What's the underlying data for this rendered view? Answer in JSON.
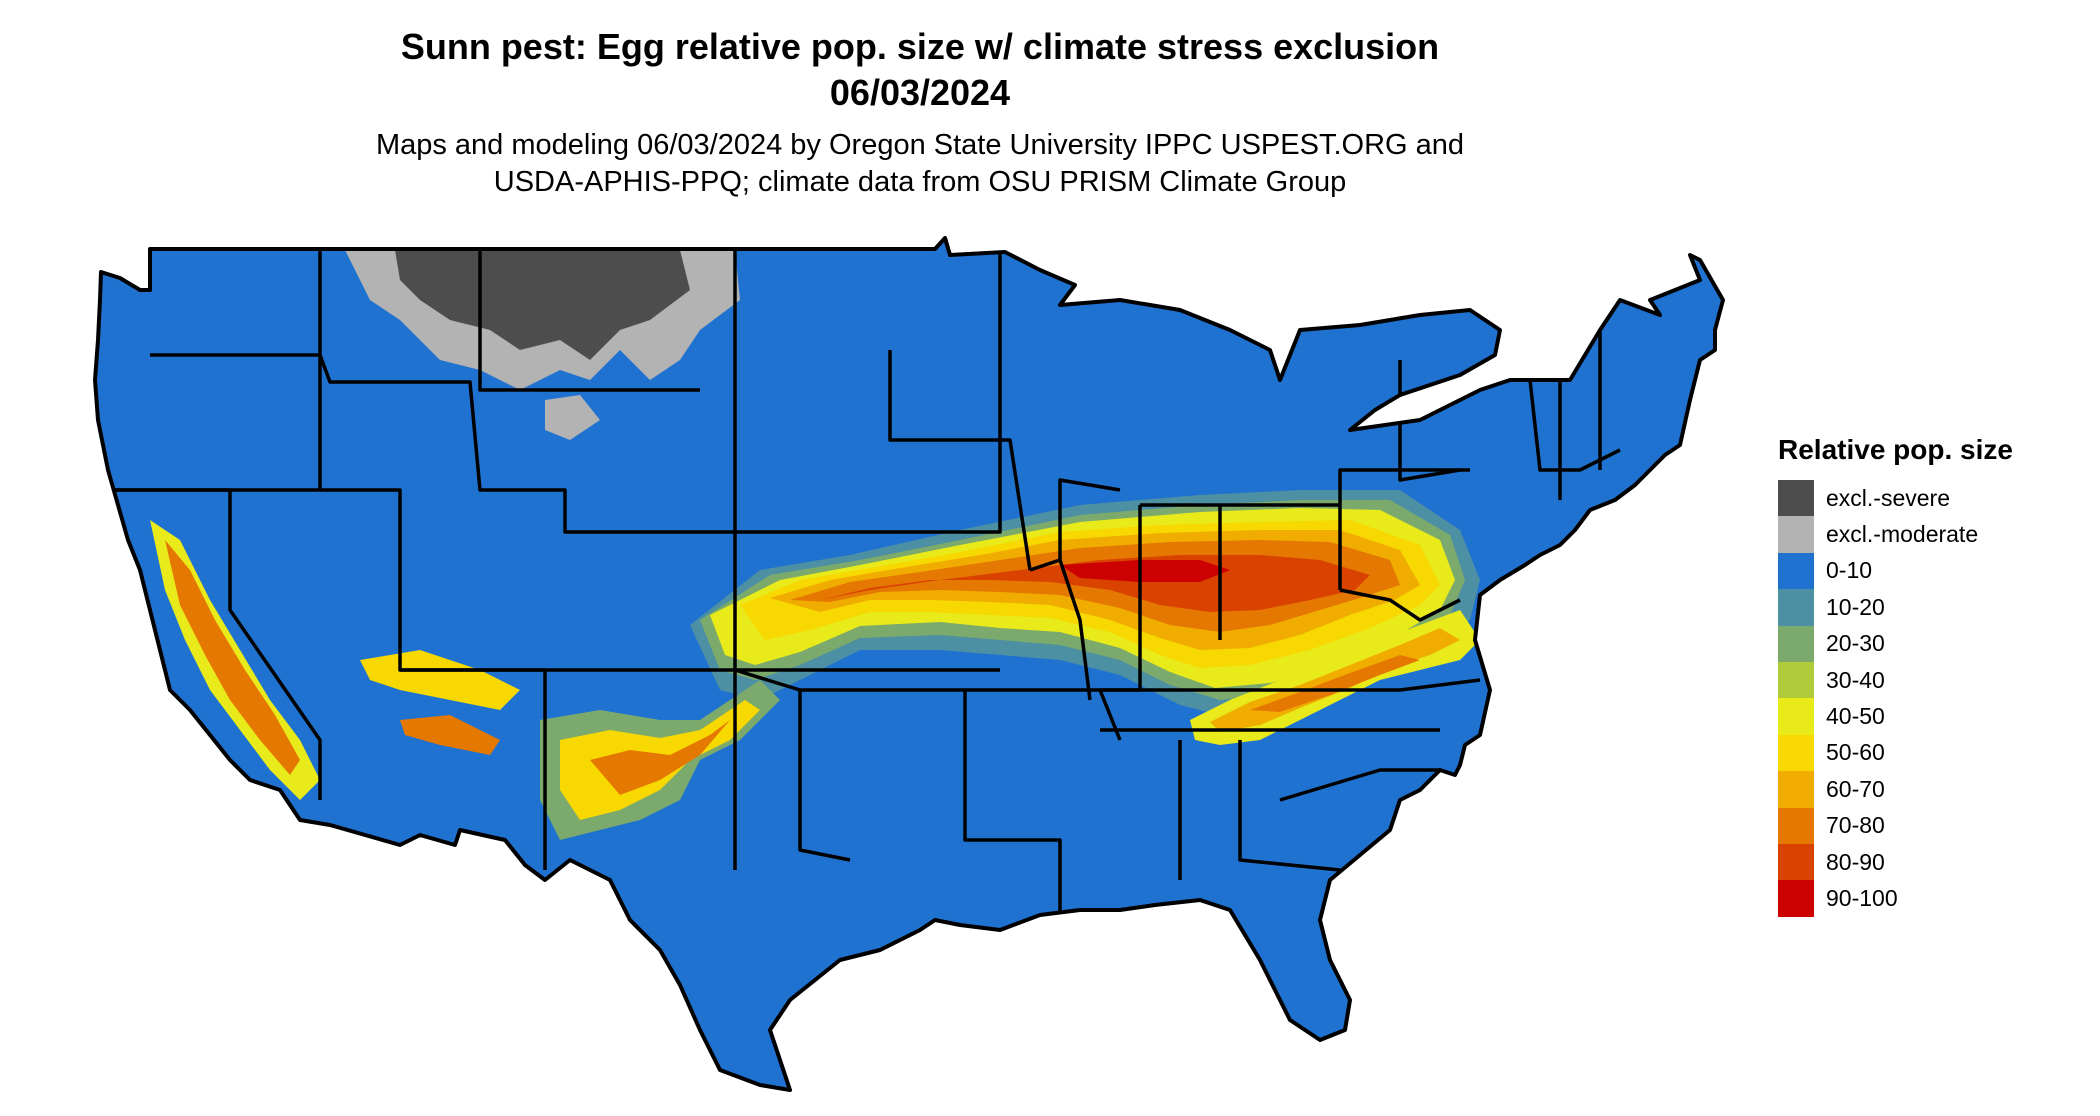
{
  "title_line1": "Sunn pest: Egg relative pop. size w/ climate stress exclusion",
  "title_line2": "06/03/2024",
  "subtitle_line1": "Maps and modeling 06/03/2024 by Oregon State University IPPC USPEST.ORG and",
  "subtitle_line2": "USDA-APHIS-PPQ; climate data from OSU PRISM Climate Group",
  "legend": {
    "title": "Relative pop. size",
    "items": [
      {
        "label": "excl.-severe",
        "color": "#4d4d4d"
      },
      {
        "label": "excl.-moderate",
        "color": "#b3b3b3"
      },
      {
        "label": "0-10",
        "color": "#1f72d0"
      },
      {
        "label": "10-20",
        "color": "#4d8fa3"
      },
      {
        "label": "20-30",
        "color": "#7baa6c"
      },
      {
        "label": "30-40",
        "color": "#b1cc3a"
      },
      {
        "label": "40-50",
        "color": "#e8ea1a"
      },
      {
        "label": "50-60",
        "color": "#f7d800"
      },
      {
        "label": "60-70",
        "color": "#f0ad00"
      },
      {
        "label": "70-80",
        "color": "#e57800"
      },
      {
        "label": "80-90",
        "color": "#da4200"
      },
      {
        "label": "90-100",
        "color": "#cc0000"
      }
    ]
  }
}
